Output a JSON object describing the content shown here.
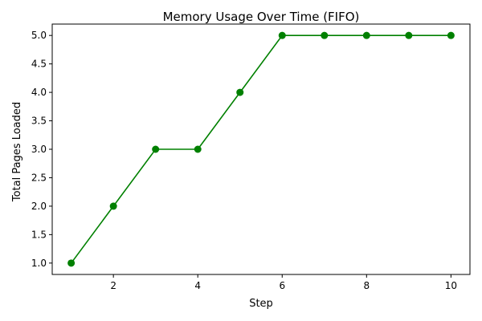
{
  "chart_data": {
    "type": "line",
    "title": "Memory Usage Over Time (FIFO)",
    "xlabel": "Step",
    "ylabel": "Total Pages Loaded",
    "x": [
      1,
      2,
      3,
      4,
      5,
      6,
      7,
      8,
      9,
      10
    ],
    "series": [
      {
        "values": [
          1,
          2,
          3,
          3,
          4,
          5,
          5,
          5,
          5,
          5
        ],
        "color": "#008000",
        "marker": "circle"
      }
    ],
    "xlim": [
      0.55,
      10.45
    ],
    "ylim": [
      0.8,
      5.2
    ],
    "xticks": [
      2,
      4,
      6,
      8,
      10
    ],
    "xtick_labels": [
      "2",
      "4",
      "6",
      "8",
      "10"
    ],
    "yticks": [
      1.0,
      1.5,
      2.0,
      2.5,
      3.0,
      3.5,
      4.0,
      4.5,
      5.0
    ],
    "ytick_labels": [
      "1.0",
      "1.5",
      "2.0",
      "2.5",
      "3.0",
      "3.5",
      "4.0",
      "4.5",
      "5.0"
    ],
    "grid": false,
    "legend": "none"
  }
}
